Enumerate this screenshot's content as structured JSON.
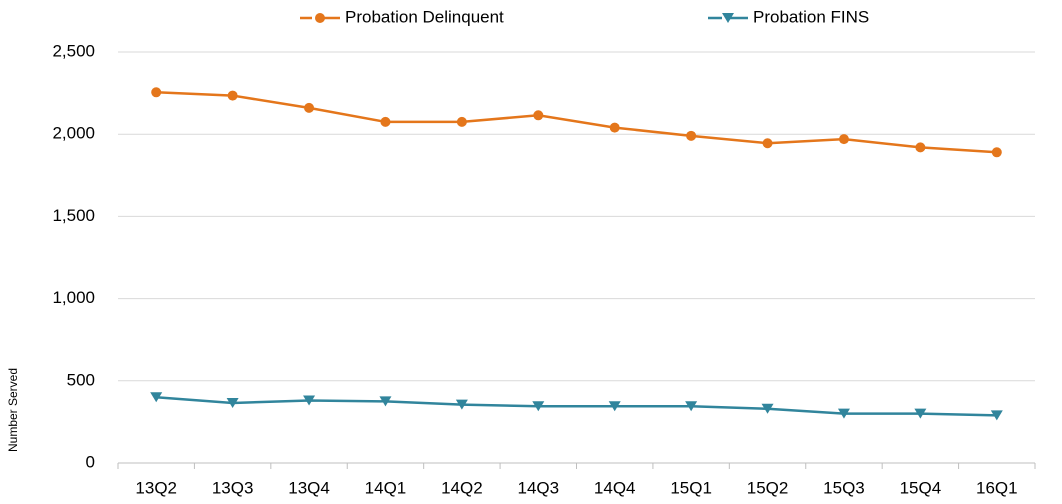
{
  "chart_data": {
    "type": "line",
    "y_label": "Number Served",
    "categories": [
      "13Q2",
      "13Q3",
      "13Q4",
      "14Q1",
      "14Q2",
      "14Q3",
      "14Q4",
      "15Q1",
      "15Q2",
      "15Q3",
      "15Q4",
      "16Q1"
    ],
    "series": [
      {
        "name": "Probation Delinquent",
        "color": "#e4761b",
        "marker": "circle",
        "values": [
          2255,
          2235,
          2160,
          2075,
          2075,
          2115,
          2040,
          1990,
          1945,
          1970,
          1920,
          1890
        ]
      },
      {
        "name": "Probation FINS",
        "color": "#31859c",
        "marker": "triangle-down",
        "values": [
          400,
          365,
          380,
          375,
          355,
          345,
          345,
          345,
          330,
          300,
          300,
          290
        ]
      }
    ],
    "ylim": [
      0,
      2500
    ],
    "yticks": [
      0,
      500,
      {
        "value": 1000,
        "label": "1,000"
      },
      {
        "value": 1500,
        "label": "1,500"
      },
      {
        "value": 2000,
        "label": "2,000"
      },
      {
        "value": 2500,
        "label": "2,500"
      }
    ],
    "grid": true,
    "legend": "top"
  }
}
